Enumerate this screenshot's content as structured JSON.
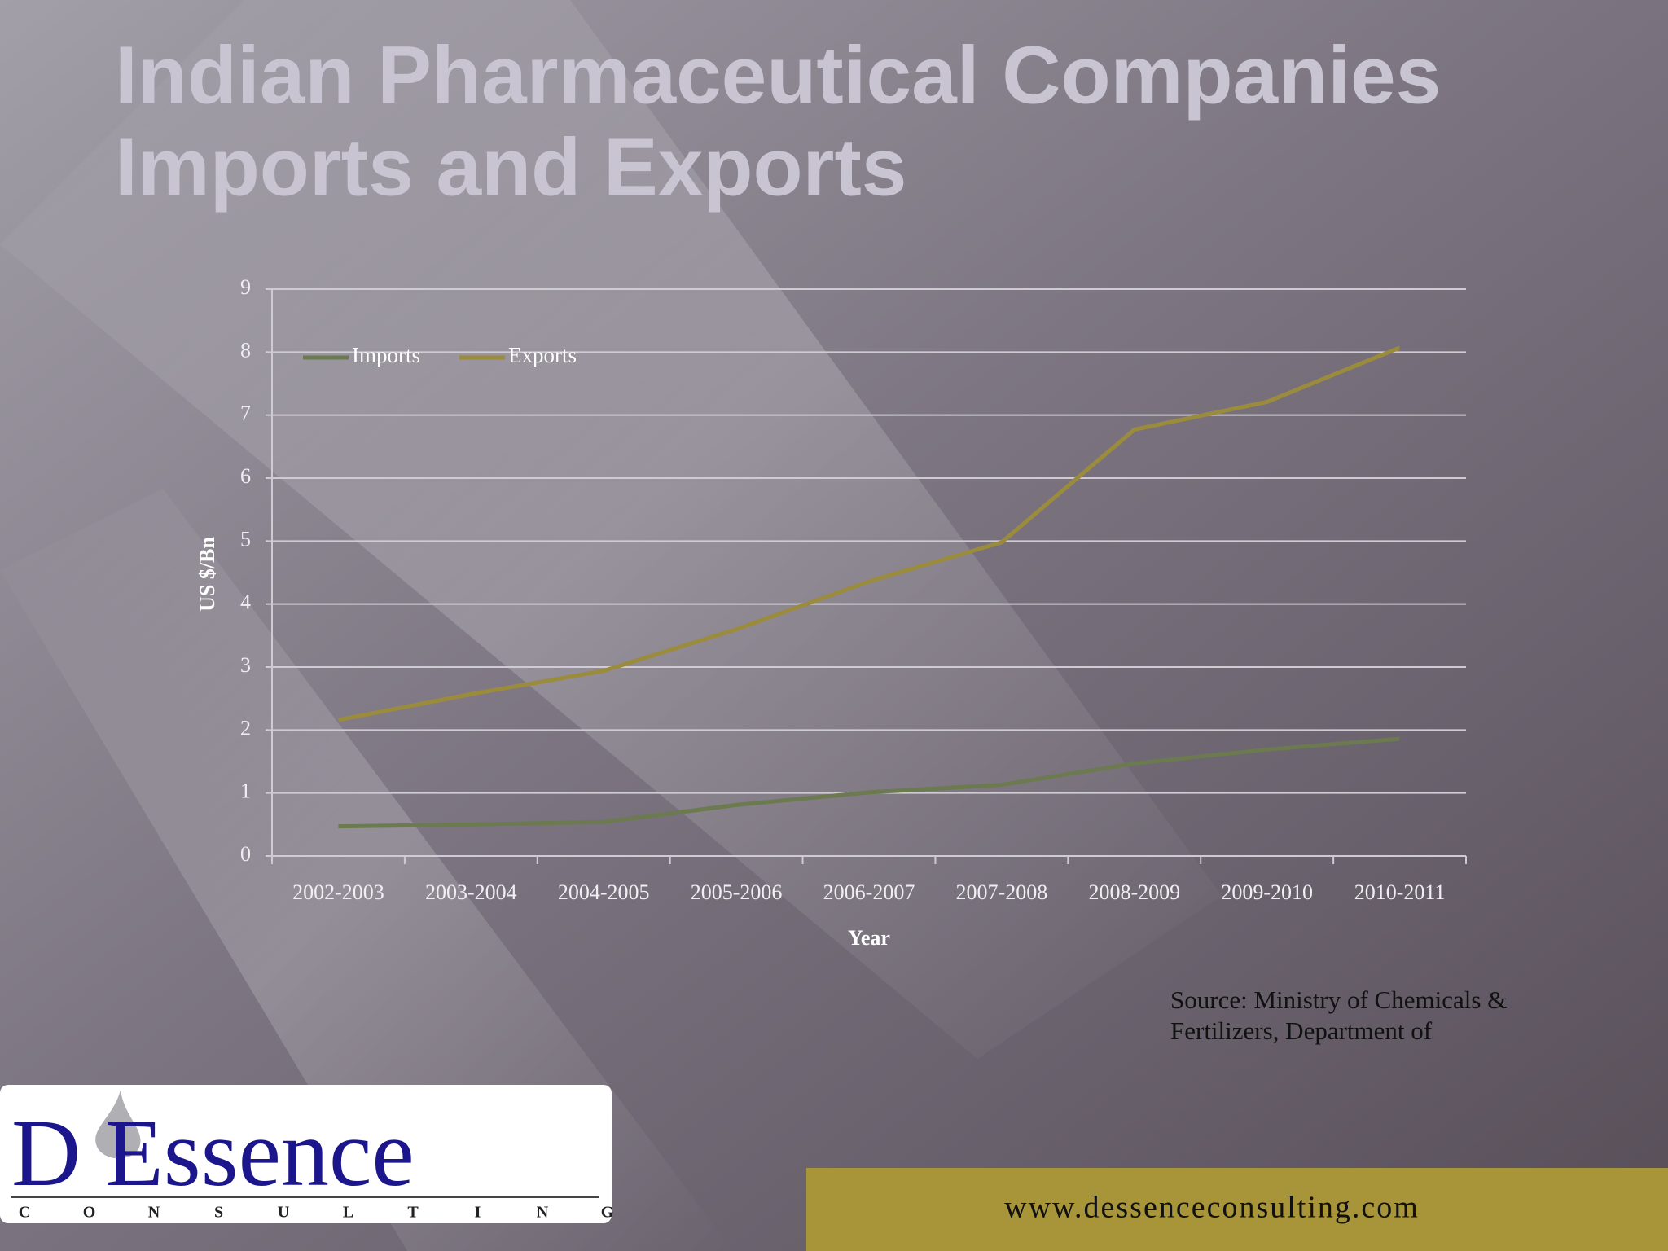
{
  "title": [
    "Indian Pharmaceutical Companies",
    "Imports and Exports"
  ],
  "chart_data": {
    "type": "line",
    "x_label": "Year",
    "y_label": "US $/Bn",
    "categories": [
      "2002-2003",
      "2003-2004",
      "2004-2005",
      "2005-2006",
      "2006-2007",
      "2007-2008",
      "2008-2009",
      "2009-2010",
      "2010-2011"
    ],
    "series": [
      {
        "name": "Imports",
        "color": "#6b7a4f",
        "values": [
          0.47,
          0.5,
          0.54,
          0.81,
          1.01,
          1.13,
          1.47,
          1.69,
          1.86
        ]
      },
      {
        "name": "Exports",
        "color": "#9a8c3c",
        "values": [
          2.16,
          2.57,
          2.94,
          3.6,
          4.36,
          4.98,
          6.77,
          7.21,
          8.07
        ]
      }
    ],
    "ylim": [
      0,
      9
    ],
    "yticks": [
      0,
      1,
      2,
      3,
      4,
      5,
      6,
      7,
      8,
      9
    ],
    "grid": true,
    "legend": "top-left"
  },
  "source": [
    "Source: Ministry of Chemicals &",
    "Fertilizers, Department of"
  ],
  "logo": {
    "name": "D Essence",
    "tagline": [
      "C",
      "O",
      "N",
      "S",
      "U",
      "L",
      "T",
      "I",
      "N",
      "G"
    ]
  },
  "footer_url": "www.dessenceconsulting.com"
}
